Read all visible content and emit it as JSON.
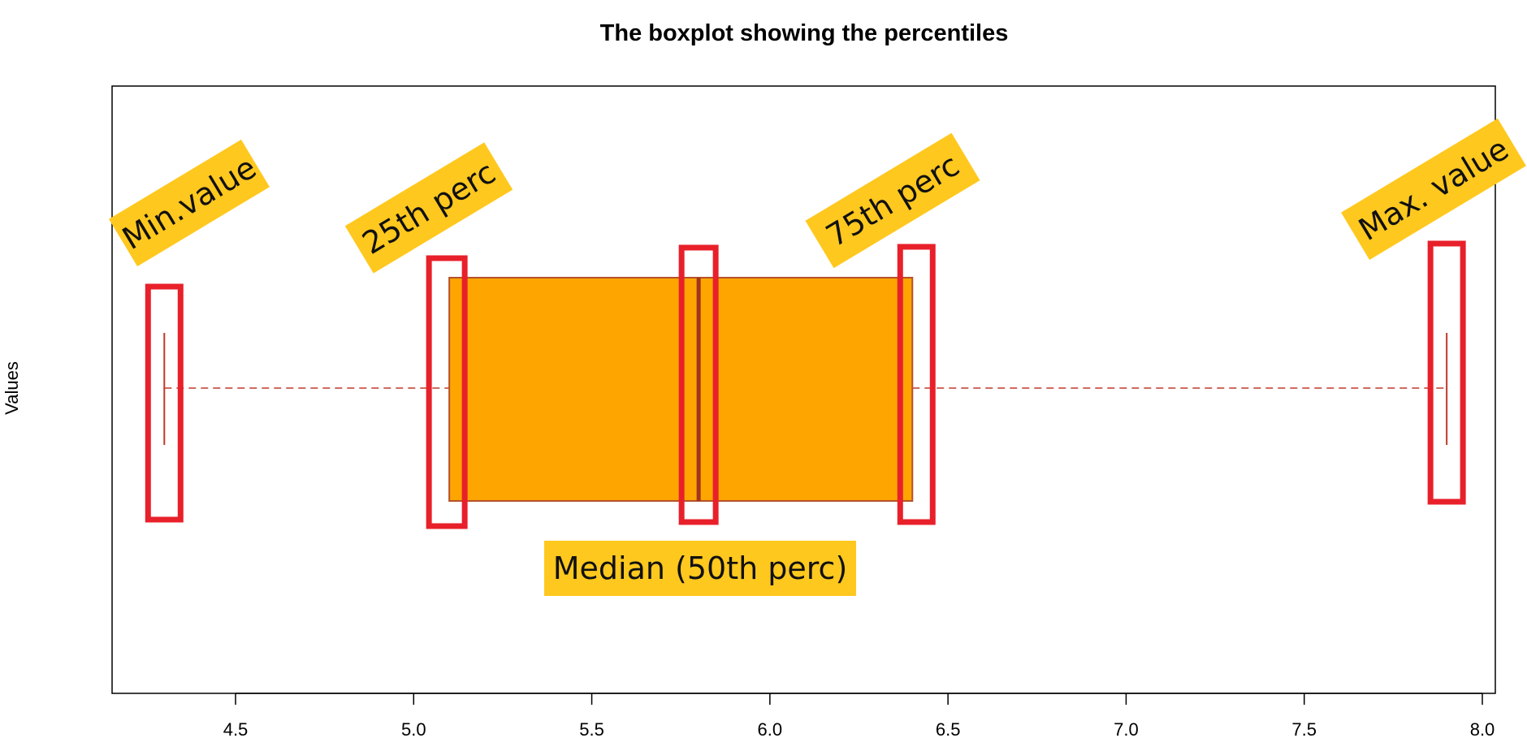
{
  "chart_data": {
    "type": "boxplot",
    "orientation": "horizontal",
    "title": "The boxplot showing the percentiles",
    "ylabel": "Values",
    "xlabel": "",
    "xlim": [
      4.2,
      8.0
    ],
    "x_ticks": [
      "4.5",
      "5.0",
      "5.5",
      "6.0",
      "6.5",
      "7.0",
      "7.5",
      "8.0"
    ],
    "box": {
      "min": 4.3,
      "q1": 5.1,
      "median": 5.8,
      "q3": 6.4,
      "max": 7.9
    },
    "colors": {
      "box_fill": "#FFA500",
      "box_border": "#B5502A",
      "median_line": "#A0361E",
      "whisker": "#C0392B",
      "highlight": "#E8202A",
      "annotation_bg": "#FFC81E"
    },
    "annotations": [
      {
        "text": "Min.value",
        "target": "min"
      },
      {
        "text": "25th perc",
        "target": "q1"
      },
      {
        "text": "Median (50th perc)",
        "target": "median"
      },
      {
        "text": "75th  perc",
        "target": "q3"
      },
      {
        "text": "Max. value",
        "target": "max"
      }
    ]
  }
}
